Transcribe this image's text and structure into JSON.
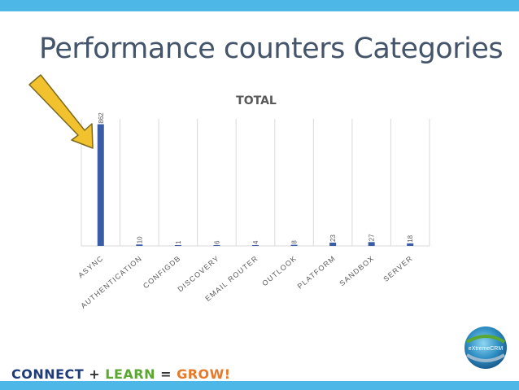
{
  "slide": {
    "title": "Performance counters Categories"
  },
  "chart_data": {
    "type": "bar",
    "title": "TOTAL",
    "categories": [
      "ASYNC",
      "AUTHENTICATION",
      "CONFIGDB",
      "DISCOVERY",
      "EMAIL ROUTER",
      "OUTLOOK",
      "PLATFORM",
      "SANDBOX",
      "SERVER"
    ],
    "values": [
      862,
      10,
      1,
      6,
      4,
      8,
      23,
      27,
      18
    ],
    "ylim": [
      0,
      900
    ],
    "grid": "vertical",
    "legend": "none",
    "bar_color": "#3a5ca5",
    "data_labels": [
      "862",
      "10",
      "1",
      "6",
      "4",
      "8",
      "23",
      "27",
      "18"
    ]
  },
  "annotation": {
    "arrow_color": "#f2c12e",
    "arrow_target": "ASYNC"
  },
  "footer": {
    "connect": "CONNECT",
    "plus": "+",
    "learn": "LEARN",
    "equals": "=",
    "grow": "GROW!"
  },
  "logo": {
    "text": "eXtremeCRM",
    "icon": "globe-swirl-icon"
  },
  "colors": {
    "accent_bar": "#4db8e8",
    "title_color": "#44546a"
  }
}
